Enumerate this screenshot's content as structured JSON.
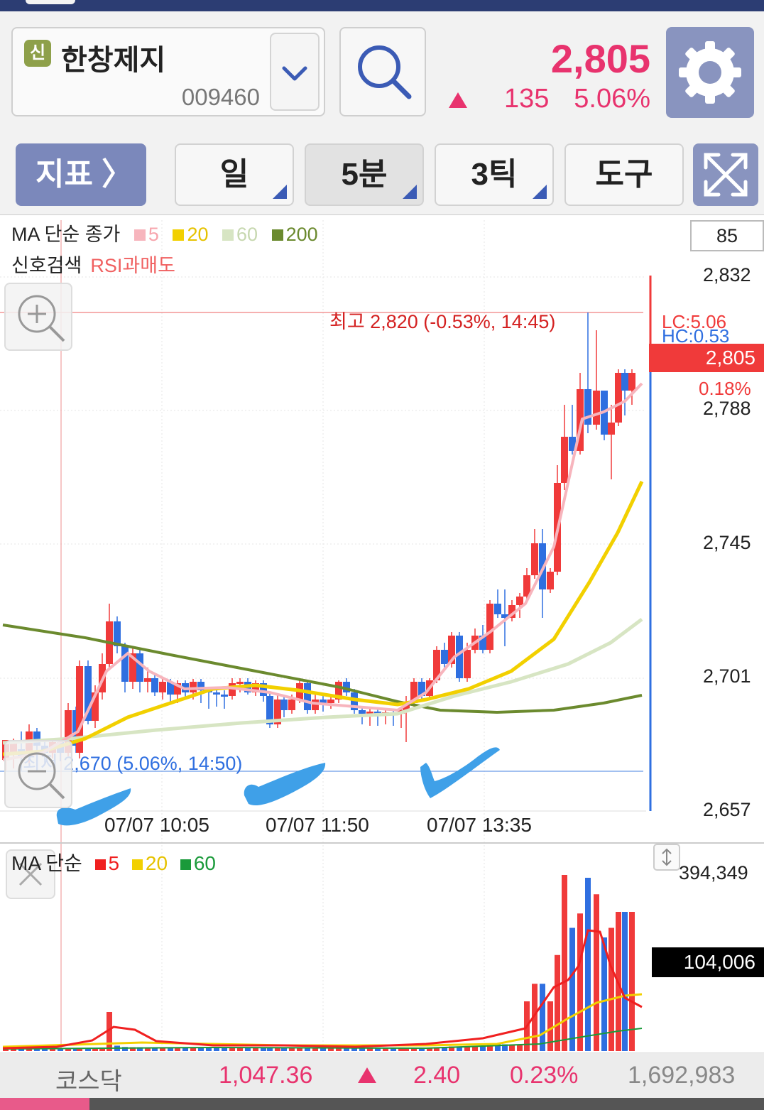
{
  "stock": {
    "badge": "신",
    "name": "한창제지",
    "code": "009460",
    "price": "2,805",
    "change": "135",
    "change_pct": "5.06%"
  },
  "toolbar": {
    "indicator_label": "지표 〉",
    "tabs": [
      {
        "label": "일"
      },
      {
        "label": "5분"
      },
      {
        "label": "3틱"
      },
      {
        "label": "도구"
      }
    ]
  },
  "price_chart": {
    "ma_label": "MA 단순 종가",
    "ma_periods": [
      {
        "period": "5",
        "color": "#f7b5bd"
      },
      {
        "period": "20",
        "color": "#f2d000"
      },
      {
        "period": "60",
        "color": "#d7e5c3"
      },
      {
        "period": "200",
        "color": "#6b8a2e"
      }
    ],
    "signal_label": "신호검색",
    "signal_value": "RSI과매도",
    "box_value": "85",
    "high_annotation": "최고 2,820 (-0.53%, 14:45)",
    "low_annotation": "최저 2,670 (5.06%, 14:50)",
    "lc_label": "LC:5.06",
    "hc_label": "HC:0.53",
    "current_price": "2,805",
    "current_pct": "0.18%",
    "y_labels": [
      "2,832",
      "2,788",
      "2,745",
      "2,701",
      "2,657"
    ],
    "x_labels": [
      "07/07 10:05",
      "07/07 11:50",
      "07/07 13:35"
    ]
  },
  "volume_chart": {
    "ma_label": "MA 단순",
    "ma_periods": [
      {
        "period": "5",
        "color": "#f02020"
      },
      {
        "period": "20",
        "color": "#f2d000"
      },
      {
        "period": "60",
        "color": "#1a9a3a"
      }
    ],
    "max_label": "394,349",
    "current_label": "104,006"
  },
  "footer": {
    "index_name": "코스닥",
    "index_value": "1,047.36",
    "index_change": "2.40",
    "index_pct": "0.23%",
    "volume": "1,692,983"
  },
  "colors": {
    "up": "#f03a3a",
    "down": "#2f6fe0",
    "accent": "#e8336e",
    "header_btn": "#8994bf"
  },
  "icons": {
    "search": "search-icon",
    "settings": "gear-icon",
    "dropdown": "chevron-down-icon",
    "expand": "expand-icon",
    "zoom_in": "zoom-in-icon",
    "zoom_out": "zoom-out-icon",
    "close": "close-icon",
    "resize": "resize-arrows-icon"
  }
}
